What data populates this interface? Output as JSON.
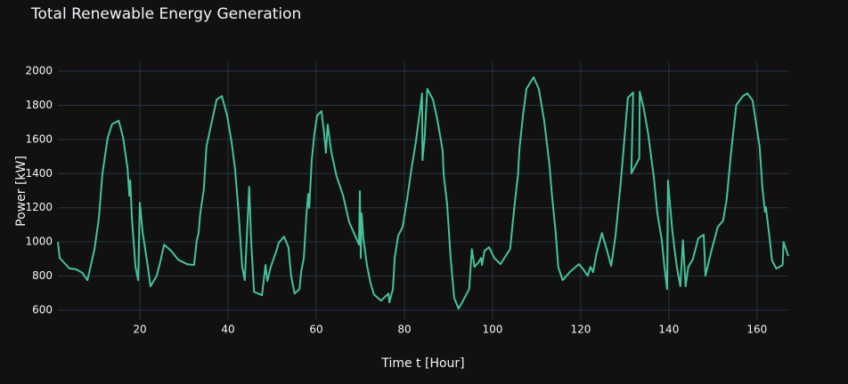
{
  "chart_data": {
    "type": "line",
    "title": "Total Renewable Energy Generation",
    "x_label": "Time t [Hour]",
    "y_label": "Power [kW]",
    "color": "#45c29b",
    "grid": true,
    "xlim": [
      1.4,
      167.1
    ],
    "ylim": [
      543,
      2052
    ],
    "xticks": [
      20,
      40,
      60,
      80,
      100,
      120,
      140,
      160
    ],
    "yticks": [
      600,
      800,
      1000,
      1200,
      1400,
      1600,
      1800,
      2000
    ],
    "x": [
      1.4,
      1.8,
      4.0,
      5.5,
      6.9,
      8.1,
      9.7,
      10.7,
      11.5,
      12.7,
      13.7,
      15.2,
      16.2,
      17.2,
      17.6,
      17.8,
      18.2,
      19.0,
      19.6,
      20.0,
      20.6,
      21.8,
      22.4,
      23.8,
      24.6,
      25.5,
      27.1,
      28.7,
      30.7,
      32.3,
      32.9,
      33.3,
      33.7,
      34.5,
      35.1,
      36.2,
      37.4,
      38.6,
      39.8,
      40.8,
      41.6,
      42.4,
      43.2,
      43.8,
      44.8,
      45.2,
      45.9,
      47.7,
      48.5,
      48.9,
      49.7,
      50.9,
      51.5,
      52.7,
      53.7,
      54.3,
      55.1,
      56.2,
      56.6,
      57.2,
      57.8,
      58.2,
      58.4,
      59.0,
      59.6,
      60.2,
      61.2,
      61.8,
      62.2,
      62.6,
      63.4,
      64.6,
      66.1,
      67.5,
      69.1,
      69.7,
      69.9,
      70.1,
      70.3,
      70.7,
      71.5,
      72.3,
      73.1,
      74.7,
      76.4,
      76.6,
      77.4,
      77.8,
      78.6,
      79.6,
      80.6,
      81.6,
      82.6,
      83.6,
      84.0,
      84.1,
      84.6,
      85.2,
      86.5,
      87.5,
      88.7,
      88.9,
      89.7,
      90.5,
      91.3,
      92.3,
      93.3,
      94.7,
      95.3,
      95.9,
      96.8,
      97.4,
      97.6,
      98.2,
      99.2,
      100.4,
      101.8,
      104.0,
      105.0,
      105.8,
      106.1,
      106.9,
      107.7,
      109.3,
      110.5,
      111.7,
      112.9,
      113.5,
      114.3,
      114.9,
      115.9,
      117.7,
      119.6,
      120.6,
      121.6,
      122.2,
      122.8,
      123.6,
      124.8,
      126.0,
      126.9,
      127.9,
      129.1,
      130.7,
      131.9,
      131.5,
      133.3,
      133.4,
      134.3,
      135.3,
      136.6,
      137.4,
      138.4,
      139.0,
      139.6,
      139.8,
      140.8,
      141.8,
      142.6,
      143.2,
      143.8,
      144.4,
      145.4,
      146.7,
      147.9,
      148.3,
      149.5,
      151.1,
      152.3,
      153.1,
      154.1,
      155.3,
      156.8,
      157.8,
      159.0,
      160.6,
      161.2,
      161.8,
      162.0,
      162.8,
      163.4,
      164.4,
      165.8,
      166.0,
      167.1
    ],
    "values": [
      1000,
      906,
      845,
      840,
      820,
      776,
      958,
      1140,
      1400,
      1610,
      1690,
      1710,
      1610,
      1430,
      1270,
      1360,
      1140,
      854,
      776,
      1230,
      1060,
      854,
      740,
      802,
      880,
      984,
      948,
      896,
      870,
      865,
      1010,
      1050,
      1167,
      1307,
      1560,
      1690,
      1833,
      1854,
      1740,
      1583,
      1427,
      1167,
      854,
      776,
      1323,
      1021,
      708,
      688,
      865,
      771,
      854,
      943,
      995,
      1031,
      969,
      802,
      698,
      724,
      828,
      906,
      1167,
      1281,
      1198,
      1479,
      1635,
      1740,
      1766,
      1635,
      1521,
      1688,
      1531,
      1385,
      1271,
      1115,
      1021,
      984,
      1297,
      906,
      1167,
      1021,
      865,
      760,
      693,
      656,
      698,
      646,
      724,
      906,
      1036,
      1088,
      1245,
      1427,
      1583,
      1781,
      1870,
      1479,
      1609,
      1896,
      1833,
      1714,
      1531,
      1401,
      1219,
      906,
      672,
      609,
      656,
      724,
      958,
      854,
      880,
      906,
      865,
      948,
      969,
      906,
      870,
      958,
      1219,
      1396,
      1542,
      1740,
      1896,
      1964,
      1896,
      1714,
      1453,
      1271,
      1063,
      854,
      776,
      828,
      870,
      839,
      802,
      854,
      823,
      932,
      1052,
      948,
      860,
      1036,
      1349,
      1844,
      1875,
      1401,
      1490,
      1880,
      1781,
      1635,
      1375,
      1167,
      1010,
      854,
      724,
      1359,
      1063,
      854,
      740,
      1010,
      740,
      854,
      896,
      1021,
      1042,
      802,
      932,
      1088,
      1125,
      1245,
      1521,
      1802,
      1854,
      1870,
      1828,
      1557,
      1323,
      1177,
      1203,
      1036,
      891,
      844,
      865,
      1000,
      917
    ]
  }
}
